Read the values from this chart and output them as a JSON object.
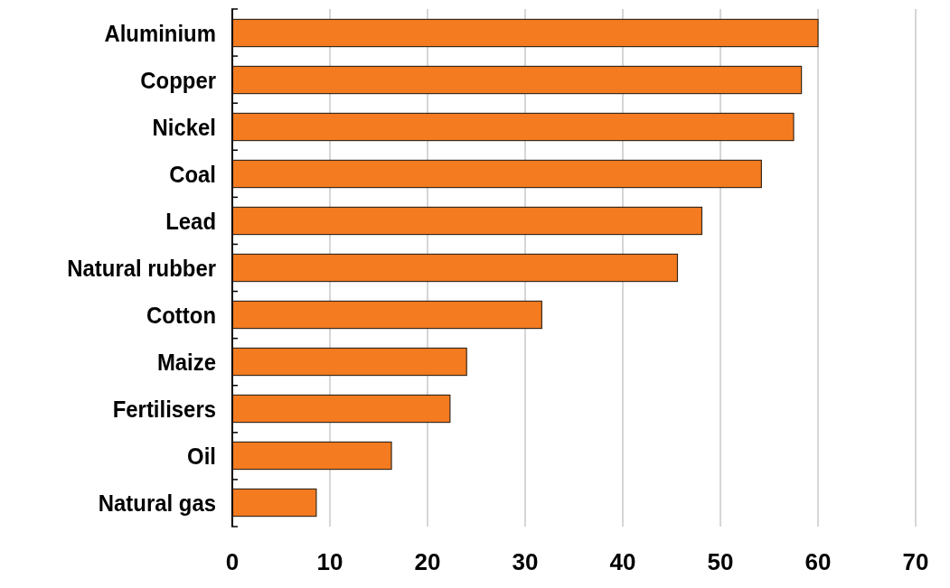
{
  "chart_data": {
    "type": "bar",
    "orientation": "horizontal",
    "categories": [
      "Aluminium",
      "Copper",
      "Nickel",
      "Coal",
      "Lead",
      "Natural rubber",
      "Cotton",
      "Maize",
      "Fertilisers",
      "Oil",
      "Natural gas"
    ],
    "values": [
      60.0,
      58.3,
      57.5,
      54.2,
      48.1,
      45.6,
      31.7,
      24.0,
      22.3,
      16.3,
      8.6
    ],
    "color": "#f47b20",
    "xlim": [
      0,
      70
    ],
    "xticks": [
      0,
      10,
      20,
      30,
      40,
      50,
      60,
      70
    ],
    "grid": "x"
  }
}
